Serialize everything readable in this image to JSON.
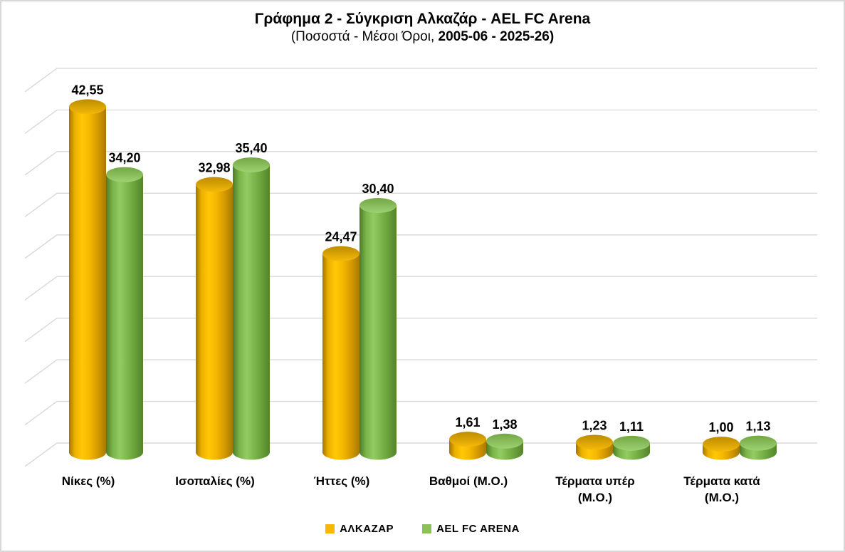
{
  "title": {
    "line1": "Γράφημα 2 - Σύγκριση Αλκαζάρ - AEL FC Arena",
    "line2_prefix": "(Ποσοστά - Μέσοι Όροι, ",
    "line2_bold": "2005-06 - 2025-26)"
  },
  "chart_data": {
    "type": "bar",
    "subtype": "3d-cylinder",
    "title": "Γράφημα 2 - Σύγκριση Αλκαζάρ - AEL FC Arena (Ποσοστά - Μέσοι Όροι, 2005-06 - 2025-26)",
    "categories": [
      "Νίκες (%)",
      "Ισοπαλίες (%)",
      "Ήττες (%)",
      "Βαθμοί (Μ.Ο.)",
      "Τέρματα υπέρ (Μ.Ο.)",
      "Τέρματα κατά (Μ.Ο.)"
    ],
    "categories_display": [
      "Νίκες (%)",
      "Ισοπαλίες (%)",
      "Ήττες (%)",
      "Βαθμοί (Μ.Ο.)",
      "Τέρματα υπέρ\n(Μ.Ο.)",
      "Τέρματα κατά\n(Μ.Ο.)"
    ],
    "series": [
      {
        "name": "ΑΛΚΑΖΑΡ",
        "values": [
          42.55,
          32.98,
          24.47,
          1.61,
          1.23,
          1.0
        ],
        "labels": [
          "42,55",
          "32,98",
          "24,47",
          "1,61",
          "1,23",
          "1,00"
        ]
      },
      {
        "name": "AEL FC ARENA",
        "values": [
          34.2,
          35.4,
          30.4,
          1.38,
          1.11,
          1.13
        ],
        "labels": [
          "34,20",
          "35,40",
          "30,40",
          "1,38",
          "1,11",
          "1,13"
        ]
      }
    ],
    "ylim": [
      0,
      45
    ],
    "grid_step": 5,
    "grid": true,
    "value_axis_labels_visible": false,
    "decimal_separator": ",",
    "legend_position": "bottom"
  },
  "legend": {
    "items": [
      {
        "label": "ΑΛΚΑΖΑΡ",
        "color": "#F8B800"
      },
      {
        "label": "AEL FC ARENA",
        "color": "#8DC05A"
      }
    ]
  },
  "colors": {
    "grid": "#D9D9D9",
    "data_label": "#000000",
    "series_styles": [
      {
        "body": [
          [
            "0%",
            "#A27400"
          ],
          [
            "15%",
            "#ECAF00"
          ],
          [
            "35%",
            "#FFC806"
          ],
          [
            "55%",
            "#F5B800"
          ],
          [
            "80%",
            "#D19600"
          ],
          [
            "100%",
            "#A67A00"
          ]
        ],
        "top": [
          [
            "0%",
            "#BD8C00"
          ],
          [
            "100%",
            "#F4B90A"
          ]
        ]
      },
      {
        "body": [
          [
            "0%",
            "#4F7B29"
          ],
          [
            "18%",
            "#7AB549"
          ],
          [
            "38%",
            "#93CC63"
          ],
          [
            "55%",
            "#80BA4E"
          ],
          [
            "82%",
            "#649B37"
          ],
          [
            "100%",
            "#54832C"
          ]
        ],
        "top": [
          [
            "0%",
            "#73A743"
          ],
          [
            "100%",
            "#9ED173"
          ]
        ]
      }
    ]
  }
}
